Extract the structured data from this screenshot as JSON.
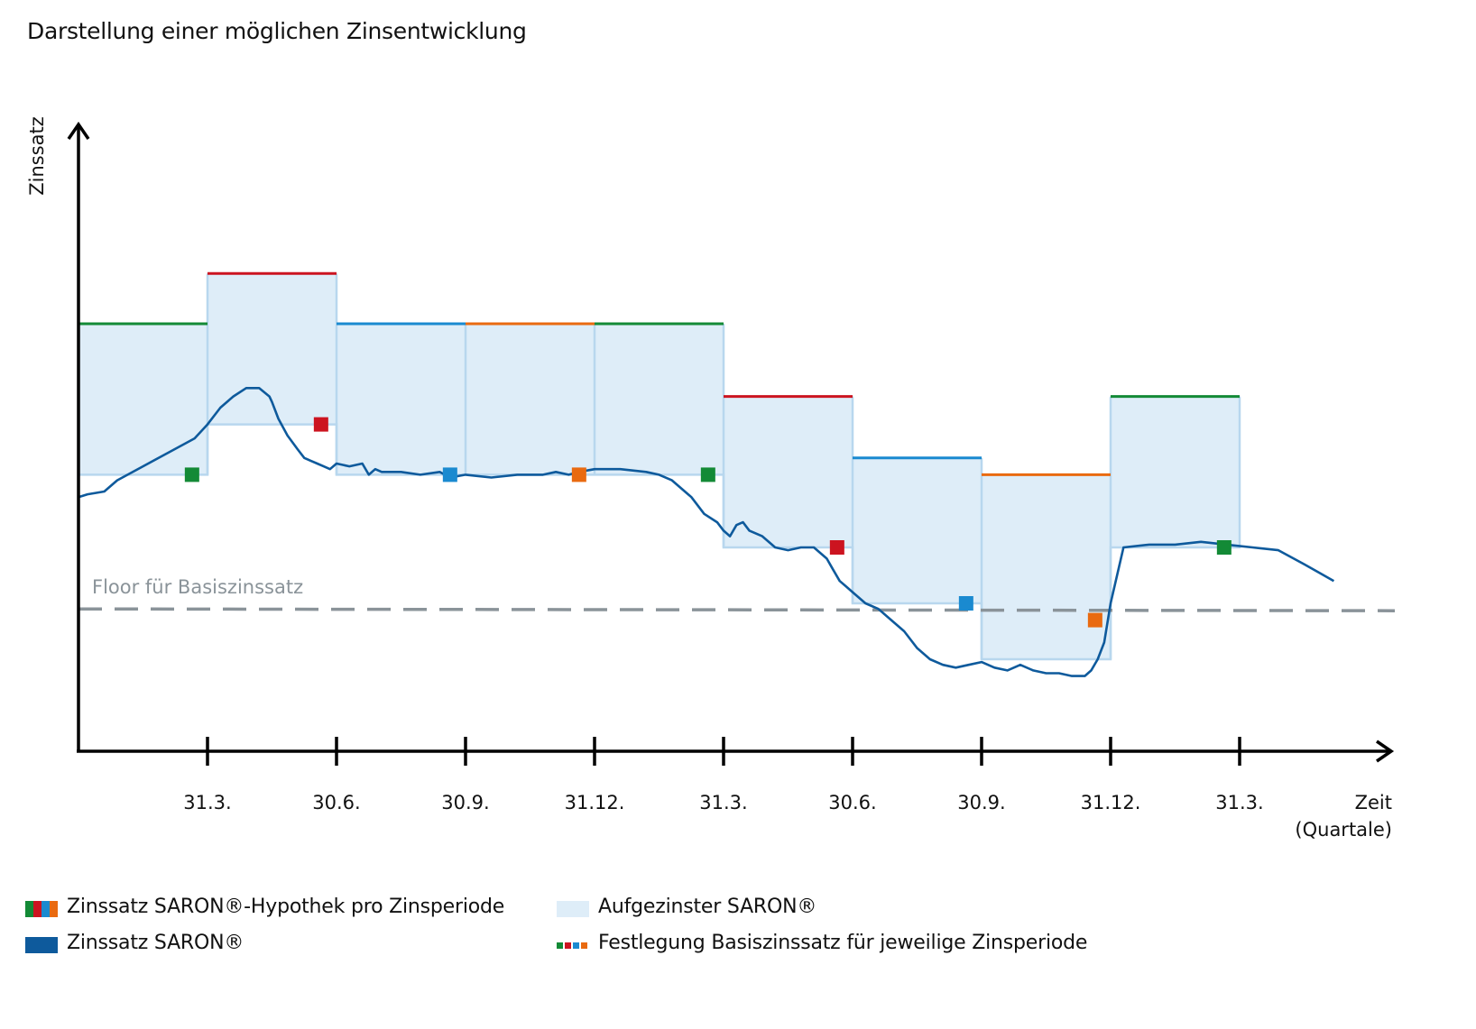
{
  "title": "Darstellung einer möglichen Zinsentwicklung",
  "colors": {
    "green": "#138a36",
    "red": "#cc1420",
    "blue": "#1a8ad0",
    "orange": "#e96a10",
    "saron": "#0e5a9c",
    "fill": "#deedf8",
    "fill_stroke": "#b8d7ee",
    "floor": "#8a9399",
    "axis": "#000000"
  },
  "chart_data": {
    "type": "line",
    "y_axis_label": "Zinssatz",
    "x_axis_label": [
      "Zeit",
      "(Quartale)"
    ],
    "x_ticks": [
      "31.3.",
      "30.6.",
      "30.9.",
      "31.12.",
      "31.3.",
      "30.6.",
      "30.9.",
      "31.12.",
      "31.3."
    ],
    "x_range": [
      0,
      10.2
    ],
    "y_range": [
      0,
      10
    ],
    "floor_label": "Floor für Basiszinssatz",
    "floor_value": 1.9,
    "period_rates": [
      {
        "start": 0,
        "end": 1,
        "rate": 7.0,
        "color": "green"
      },
      {
        "start": 1,
        "end": 2,
        "rate": 7.9,
        "color": "red"
      },
      {
        "start": 2,
        "end": 3,
        "rate": 7.0,
        "color": "blue"
      },
      {
        "start": 3,
        "end": 4,
        "rate": 7.0,
        "color": "orange"
      },
      {
        "start": 4,
        "end": 5,
        "rate": 7.0,
        "color": "green"
      },
      {
        "start": 5,
        "end": 6,
        "rate": 5.7,
        "color": "red"
      },
      {
        "start": 6,
        "end": 7,
        "rate": 4.6,
        "color": "blue"
      },
      {
        "start": 7,
        "end": 8,
        "rate": 4.3,
        "color": "orange"
      },
      {
        "start": 8,
        "end": 9,
        "rate": 5.7,
        "color": "green"
      }
    ],
    "compounded_saron": [
      {
        "start": 0,
        "end": 1,
        "rate": 4.3
      },
      {
        "start": 1,
        "end": 2,
        "rate": 5.2
      },
      {
        "start": 2,
        "end": 3,
        "rate": 4.3
      },
      {
        "start": 3,
        "end": 4,
        "rate": 4.3
      },
      {
        "start": 4,
        "end": 5,
        "rate": 4.3
      },
      {
        "start": 5,
        "end": 6,
        "rate": 3.0
      },
      {
        "start": 6,
        "end": 7,
        "rate": 2.0
      },
      {
        "start": 7,
        "end": 8,
        "rate": 1.0
      },
      {
        "start": 8,
        "end": 9,
        "rate": 3.0
      }
    ],
    "base_rate_fixings": [
      {
        "x": 0.88,
        "y": 4.3,
        "color": "green"
      },
      {
        "x": 1.88,
        "y": 5.2,
        "color": "red"
      },
      {
        "x": 2.88,
        "y": 4.3,
        "color": "blue"
      },
      {
        "x": 3.88,
        "y": 4.3,
        "color": "orange"
      },
      {
        "x": 4.88,
        "y": 4.3,
        "color": "green"
      },
      {
        "x": 5.88,
        "y": 3.0,
        "color": "red"
      },
      {
        "x": 6.88,
        "y": 2.0,
        "color": "blue"
      },
      {
        "x": 7.88,
        "y": 1.7,
        "color": "orange"
      },
      {
        "x": 8.88,
        "y": 3.0,
        "color": "green"
      }
    ],
    "saron_series": {
      "name": "Zinssatz SARON®",
      "x": [
        0,
        0.07,
        0.2,
        0.3,
        0.5,
        0.7,
        0.9,
        1.0,
        1.1,
        1.2,
        1.3,
        1.4,
        1.48,
        1.5,
        1.55,
        1.62,
        1.7,
        1.75,
        1.8,
        1.85,
        1.9,
        1.95,
        2.0,
        2.1,
        2.2,
        2.25,
        2.3,
        2.35,
        2.5,
        2.65,
        2.8,
        2.88,
        3.0,
        3.2,
        3.4,
        3.6,
        3.7,
        3.8,
        3.88,
        4.0,
        4.2,
        4.4,
        4.5,
        4.6,
        4.75,
        4.85,
        4.95,
        5.0,
        5.05,
        5.1,
        5.15,
        5.2,
        5.3,
        5.4,
        5.5,
        5.6,
        5.7,
        5.8,
        5.85,
        5.9,
        5.95,
        6.0,
        6.1,
        6.2,
        6.3,
        6.4,
        6.5,
        6.6,
        6.7,
        6.8,
        6.9,
        7.0,
        7.1,
        7.2,
        7.3,
        7.4,
        7.5,
        7.6,
        7.7,
        7.8,
        7.85,
        7.9,
        7.95,
        8.0,
        8.1,
        8.3,
        8.5,
        8.7,
        8.9,
        9.1,
        9.3,
        9.5,
        9.73
      ],
      "y": [
        3.9,
        3.95,
        4.0,
        4.2,
        4.45,
        4.7,
        4.95,
        5.2,
        5.5,
        5.7,
        5.85,
        5.85,
        5.7,
        5.6,
        5.3,
        5.0,
        4.75,
        4.6,
        4.55,
        4.5,
        4.45,
        4.4,
        4.5,
        4.45,
        4.5,
        4.3,
        4.4,
        4.35,
        4.35,
        4.3,
        4.35,
        4.25,
        4.3,
        4.25,
        4.3,
        4.3,
        4.35,
        4.3,
        4.35,
        4.4,
        4.4,
        4.35,
        4.3,
        4.2,
        3.9,
        3.6,
        3.45,
        3.3,
        3.2,
        3.4,
        3.45,
        3.3,
        3.2,
        3.0,
        2.95,
        3.0,
        3.0,
        2.8,
        2.6,
        2.4,
        2.3,
        2.2,
        2.0,
        1.9,
        1.7,
        1.5,
        1.2,
        1.0,
        0.9,
        0.85,
        0.9,
        0.95,
        0.85,
        0.8,
        0.9,
        0.8,
        0.75,
        0.75,
        0.7,
        0.7,
        0.8,
        1.0,
        1.3,
        2.0,
        3.0,
        3.05,
        3.05,
        3.1,
        3.05,
        3.0,
        2.95,
        2.7,
        2.4
      ]
    }
  },
  "legend": {
    "period_rate": "Zinssatz SARON®-Hypothek pro Zinsperiode",
    "saron": "Zinssatz SARON®",
    "compounded": "Aufgezinster SARON®",
    "fixing": "Festlegung Basiszinssatz für jeweilige Zinsperiode"
  }
}
